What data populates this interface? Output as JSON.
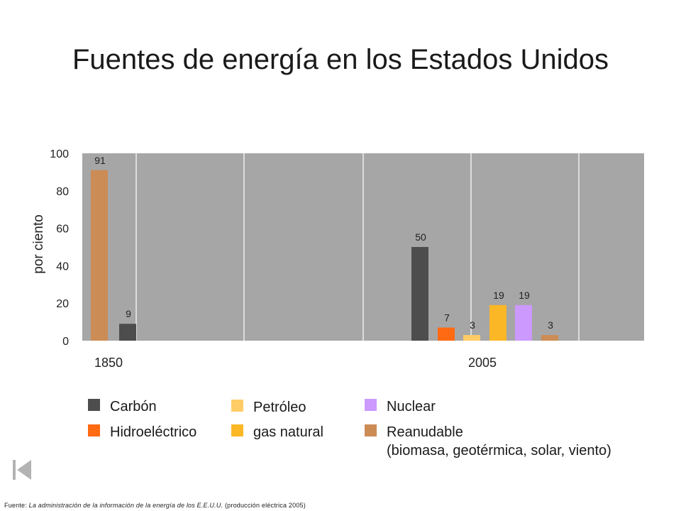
{
  "title": "Fuentes de energía en los Estados Unidos",
  "chart_data": {
    "type": "bar",
    "ylabel": "por ciento",
    "ylim": [
      0,
      100
    ],
    "yticks": [
      0,
      20,
      40,
      60,
      80,
      100
    ],
    "grid": "vertical",
    "groups": [
      "1850",
      "2005"
    ],
    "series": [
      {
        "name": "Carbón",
        "color": "#4d4d4d",
        "values": [
          9,
          50
        ]
      },
      {
        "name": "Hidroeléctrico",
        "color": "#ff6a13",
        "values": [
          null,
          7
        ]
      },
      {
        "name": "Petróleo",
        "color": "#ffcc66",
        "values": [
          null,
          3
        ]
      },
      {
        "name": "gas natural",
        "color": "#fbb726",
        "values": [
          null,
          19
        ]
      },
      {
        "name": "Nuclear",
        "color": "#cc99ff",
        "values": [
          null,
          19
        ]
      },
      {
        "name": "Reanudable\n(biomasa, geotérmica, solar, viento)",
        "color": "#cc8c55",
        "values": [
          91,
          3
        ]
      }
    ],
    "bars": [
      {
        "group": "1850",
        "series": "Reanudable",
        "value": 91,
        "label": "91",
        "color": "#cc8c55"
      },
      {
        "group": "1850",
        "series": "Carbón",
        "value": 9,
        "label": "9",
        "color": "#4d4d4d"
      },
      {
        "group": "2005",
        "series": "Carbón",
        "value": 50,
        "label": "50",
        "color": "#4d4d4d"
      },
      {
        "group": "2005",
        "series": "Hidroeléctrico",
        "value": 7,
        "label": "7",
        "color": "#ff6a13"
      },
      {
        "group": "2005",
        "series": "Petróleo",
        "value": 3,
        "label": "3",
        "color": "#ffcc66"
      },
      {
        "group": "2005",
        "series": "gas natural",
        "value": 19,
        "label": "19",
        "color": "#fbb726"
      },
      {
        "group": "2005",
        "series": "Nuclear",
        "value": 19,
        "label": "19",
        "color": "#cc99ff"
      },
      {
        "group": "2005",
        "series": "Reanudable",
        "value": 3,
        "label": "3",
        "color": "#cc8c55"
      }
    ],
    "plot_background": "#a6a6a6"
  },
  "legend": {
    "carbon": {
      "label": "Carbón",
      "color": "#4d4d4d"
    },
    "hidro": {
      "label": "Hidroeléctrico",
      "color": "#ff6a13"
    },
    "petroleo": {
      "label": "Petróleo",
      "color": "#ffcc66"
    },
    "gas": {
      "label": "gas natural",
      "color": "#fbb726"
    },
    "nuclear": {
      "label": "Nuclear",
      "color": "#cc99ff"
    },
    "reanudable": {
      "label": "Reanudable\n(biomasa, geotérmica, solar, viento)",
      "color": "#cc8c55"
    }
  },
  "nav": {
    "icon": "first-slide-icon"
  },
  "source": {
    "prefix": "Fuente:",
    "publication": "La administración de la información de la energía de los E.E.U.U.",
    "note": "(producción eléctrica 2005)"
  }
}
